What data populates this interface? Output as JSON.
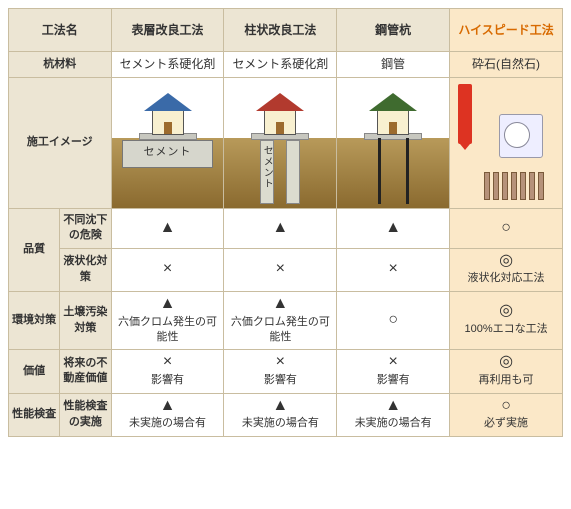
{
  "header": {
    "name": "工法名",
    "cols": [
      "表層改良工法",
      "柱状改良工法",
      "鋼管杭",
      "ハイスピード工法"
    ]
  },
  "pile_material": {
    "label": "杭材料",
    "vals": [
      "セメント系硬化剤",
      "セメント系硬化剤",
      "鋼管",
      "砕石(自然石)"
    ]
  },
  "image_row": {
    "label": "施工イメージ",
    "slab_label": "セメント",
    "pile_label": "セメント"
  },
  "groups": [
    {
      "label": "品質",
      "rows": [
        {
          "label": "不同沈下の危険",
          "cells": [
            "▲",
            "▲",
            "▲",
            "○"
          ]
        },
        {
          "label": "液状化対策",
          "cells": [
            "×",
            "×",
            "×",
            "◎"
          ],
          "sub": [
            "",
            "",
            "",
            "液状化対応工法"
          ]
        }
      ]
    },
    {
      "label": "環境対策",
      "rows": [
        {
          "label": "土壌汚染対策",
          "cells": [
            "▲",
            "▲",
            "○",
            "◎"
          ],
          "sub": [
            "六価クロム発生の可能性",
            "六価クロム発生の可能性",
            "",
            "100%エコな工法"
          ]
        }
      ]
    },
    {
      "label": "価値",
      "rows": [
        {
          "label": "将来の不動産価値",
          "cells": [
            "×",
            "×",
            "×",
            "◎"
          ],
          "sub": [
            "影響有",
            "影響有",
            "影響有",
            "再利用も可"
          ]
        }
      ]
    },
    {
      "label": "性能検査",
      "rows": [
        {
          "label": "性能検査の実施",
          "cells": [
            "▲",
            "▲",
            "▲",
            "○"
          ],
          "sub": [
            "未実施の場合有",
            "未実施の場合有",
            "未実施の場合有",
            "必ず実施"
          ]
        }
      ]
    }
  ],
  "colors": {
    "header_bg": "#ece5d3",
    "highlight_bg": "#fbe8c8",
    "highlight_text": "#d86a00",
    "border": "#c9bda0"
  }
}
